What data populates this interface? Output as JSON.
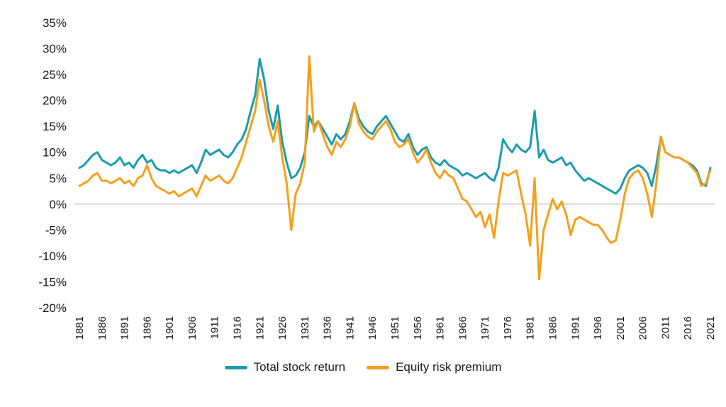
{
  "chart_data": {
    "type": "line",
    "title": "",
    "xlabel": "",
    "ylabel": "",
    "x_start": 1881,
    "x_end": 2021,
    "x_ticks": [
      1881,
      1886,
      1891,
      1896,
      1901,
      1906,
      1911,
      1916,
      1921,
      1926,
      1931,
      1936,
      1941,
      1946,
      1951,
      1956,
      1961,
      1966,
      1971,
      1976,
      1981,
      1986,
      1991,
      1996,
      2001,
      2006,
      2011,
      2016,
      2021
    ],
    "y_ticks": [
      35,
      30,
      25,
      20,
      15,
      10,
      5,
      0,
      -5,
      -10,
      -15,
      -20
    ],
    "y_tick_suffix": "%",
    "ylim": [
      -20,
      35
    ],
    "grid": "zero-line-only",
    "zero_line_color": "#cdcdcd",
    "legend_position": "bottom-center",
    "series": [
      {
        "name": "Total stock return",
        "color": "#1b9cac",
        "values": [
          7,
          7.5,
          8.5,
          9.5,
          10,
          8.5,
          8,
          7.5,
          8,
          9,
          7.5,
          8,
          7,
          8.5,
          9.5,
          8,
          8.5,
          7,
          6.5,
          6.5,
          6,
          6.5,
          6,
          6.5,
          7,
          7.5,
          6,
          8,
          10.5,
          9.5,
          10,
          10.5,
          9.5,
          9,
          10,
          11.5,
          12.5,
          14.5,
          18,
          21,
          28,
          24,
          18,
          14.5,
          19,
          12,
          8,
          5,
          5.5,
          7,
          10,
          17,
          15,
          16,
          14.5,
          13,
          11.5,
          13.5,
          12.5,
          13.5,
          16,
          19.5,
          16.5,
          15,
          14,
          13.5,
          15,
          16,
          17,
          15.5,
          14,
          12.5,
          12,
          13.5,
          11,
          9.5,
          10.5,
          11,
          9,
          8,
          7.5,
          8.5,
          7.5,
          7,
          6.5,
          5.5,
          6,
          5.5,
          5,
          5.5,
          6,
          5,
          4.5,
          7,
          12.5,
          11,
          10,
          11.5,
          10.5,
          10,
          11,
          18,
          9,
          10.5,
          8.5,
          8,
          8.5,
          9,
          7.5,
          8,
          6.5,
          5.5,
          4.5,
          5,
          4.5,
          4,
          3.5,
          3,
          2.5,
          2,
          3,
          5,
          6.5,
          7,
          7.5,
          7,
          6,
          3.5,
          7.5,
          13,
          10,
          9.5,
          9,
          9,
          8.5,
          8,
          7.5,
          6.5,
          4,
          3.5,
          7
        ]
      },
      {
        "name": "Equity risk premium",
        "color": "#f5a01b",
        "values": [
          3.5,
          4,
          4.5,
          5.5,
          6,
          4.5,
          4.5,
          4,
          4.5,
          5,
          4,
          4.5,
          3.5,
          5,
          5.5,
          7.5,
          5,
          3.5,
          3,
          2.5,
          2,
          2.5,
          1.5,
          2,
          2.5,
          3,
          1.5,
          3.5,
          5.5,
          4.5,
          5,
          5.5,
          4.5,
          4,
          5,
          7,
          9,
          12,
          15,
          18,
          24,
          20,
          15,
          12,
          16,
          9,
          4,
          -5,
          2,
          4,
          8,
          28.5,
          14,
          16,
          13.5,
          11,
          9.5,
          12,
          11,
          12.5,
          15,
          19.5,
          15.5,
          14,
          13,
          12.5,
          14,
          15,
          16,
          14.5,
          12,
          11,
          11.5,
          12.5,
          10,
          8,
          9,
          10.5,
          8,
          6,
          5,
          6.5,
          5.5,
          5,
          3,
          1,
          0.5,
          -1,
          -2.5,
          -1.5,
          -4.5,
          -2,
          -6.5,
          0.5,
          6,
          5.5,
          6,
          6.5,
          2,
          -2,
          -8,
          5,
          -14.5,
          -5,
          -2,
          1,
          -1,
          0.5,
          -2,
          -6,
          -3,
          -2.5,
          -3,
          -3.5,
          -4,
          -4,
          -5,
          -6.5,
          -7.5,
          -7,
          -3,
          2,
          5,
          6,
          6.5,
          5,
          2,
          -2.5,
          4,
          13,
          10,
          9.5,
          9,
          9,
          8.5,
          8,
          7,
          6,
          3.5,
          4,
          6.5
        ]
      }
    ]
  }
}
